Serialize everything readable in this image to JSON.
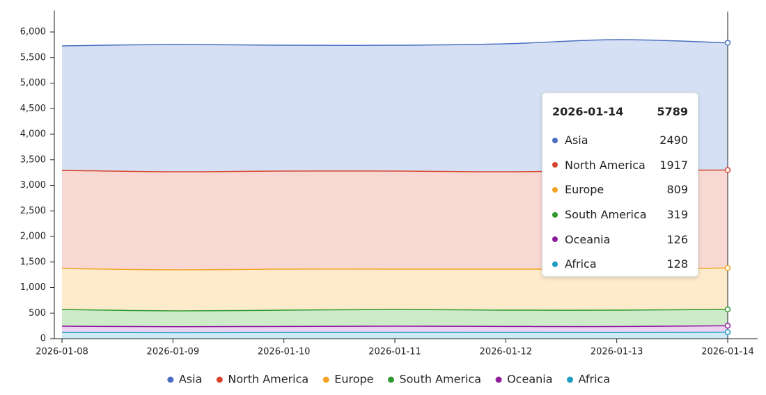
{
  "chart_data": {
    "type": "stacked-area",
    "x": [
      "2026-01-08",
      "2026-01-09",
      "2026-01-10",
      "2026-01-11",
      "2026-01-12",
      "2026-01-13",
      "2026-01-14"
    ],
    "series": [
      {
        "name": "Asia",
        "color": "#4a6fc0",
        "fill": "#d6e0f5",
        "values": [
          2435,
          2490,
          2462,
          2462,
          2504,
          2557,
          2490
        ]
      },
      {
        "name": "North America",
        "color": "#d6452b",
        "fill": "#f8d8d2",
        "values": [
          1919,
          1918,
          1918,
          1918,
          1904,
          1932,
          1917
        ]
      },
      {
        "name": "Europe",
        "color": "#f5a526",
        "fill": "#fdebcc",
        "values": [
          803,
          803,
          803,
          790,
          803,
          803,
          809
        ]
      },
      {
        "name": "South America",
        "color": "#2f9a2f",
        "fill": "#cdebc9",
        "values": [
          326,
          309,
          318,
          326,
          318,
          320,
          319
        ]
      },
      {
        "name": "Oceania",
        "color": "#8e1d9c",
        "fill": "#ecd3f0",
        "values": [
          125,
          117,
          120,
          123,
          119,
          119,
          126
        ]
      },
      {
        "name": "Africa",
        "color": "#1f9cc2",
        "fill": "#cdeaf5",
        "values": [
          120,
          118,
          120,
          122,
          121,
          119,
          128
        ]
      }
    ],
    "ylim": [
      0,
      6400
    ],
    "yticks": [
      0,
      500,
      {
        "value": 1000,
        "label": "1,000"
      },
      {
        "value": 1500,
        "label": "1,500"
      },
      {
        "value": 2000,
        "label": "2,000"
      },
      {
        "value": 2500,
        "label": "2,500"
      },
      {
        "value": 3000,
        "label": "3,000"
      },
      {
        "value": 3500,
        "label": "3,500"
      },
      {
        "value": 4000,
        "label": "4,000"
      },
      {
        "value": 4500,
        "label": "4,500"
      },
      {
        "value": 5000,
        "label": "5,000"
      },
      {
        "value": 5500,
        "label": "5,500"
      },
      {
        "value": 6000,
        "label": "6,000"
      }
    ],
    "tooltip_total": 5789,
    "legend": "bottom"
  }
}
